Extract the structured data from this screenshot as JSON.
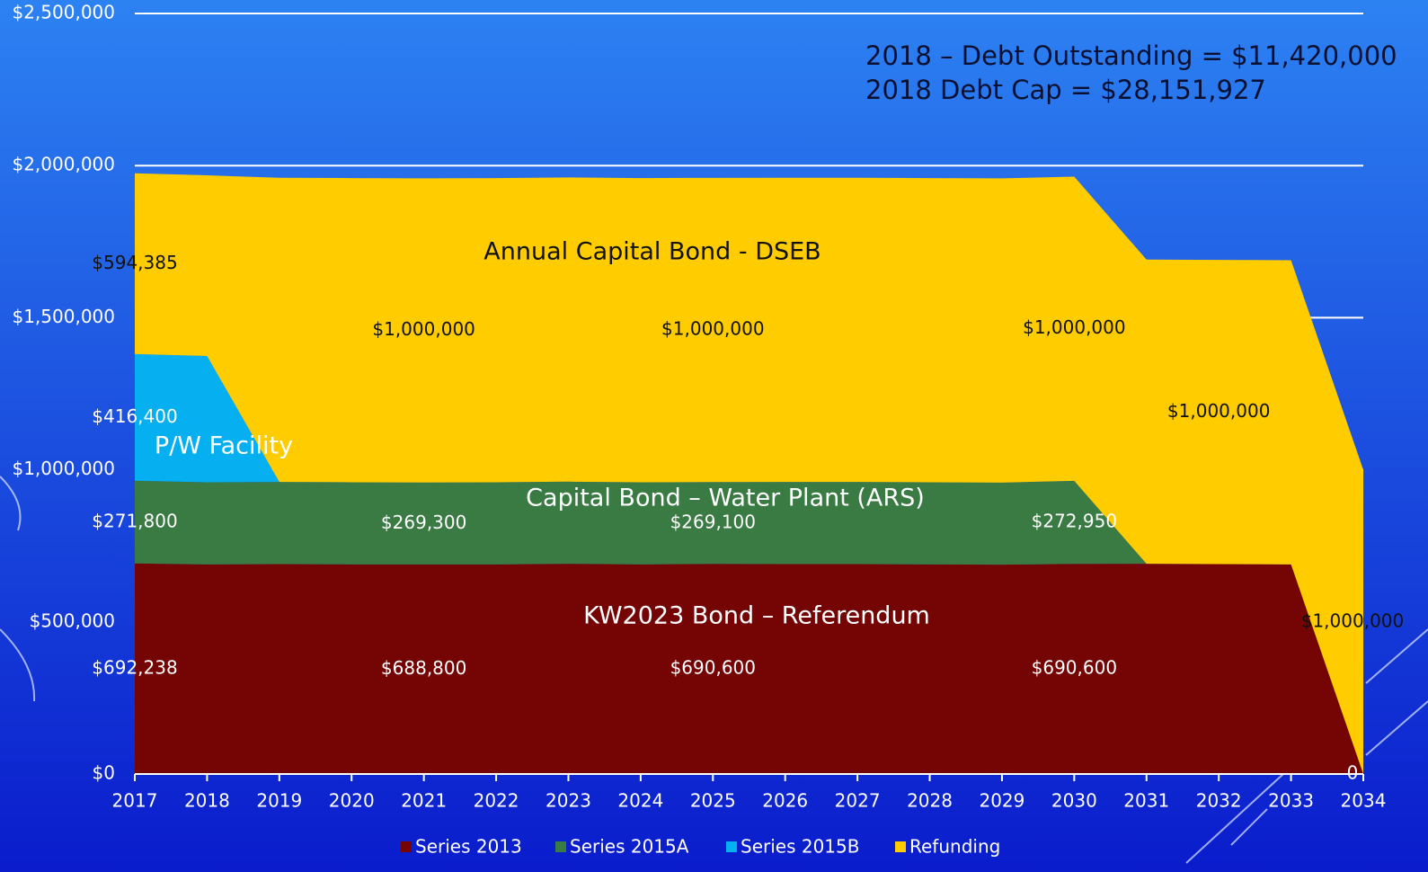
{
  "chart_data": {
    "type": "stacked_area",
    "annotations": [
      "2018 – Debt Outstanding = $11,420,000",
      "2018 Debt Cap = $28,151,927",
      "Annual Capital Bond - DSEB",
      "P/W Facility",
      "Capital Bond – Water Plant (ARS)",
      "KW2023 Bond – Referendum"
    ],
    "categories": [
      "2017",
      "2018",
      "2019",
      "2020",
      "2021",
      "2022",
      "2023",
      "2024",
      "2025",
      "2026",
      "2027",
      "2028",
      "2029",
      "2030",
      "2031",
      "2032",
      "2033",
      "2034"
    ],
    "series": [
      {
        "name": "Series 2013",
        "color": "#750505",
        "label_color": "#ffffff",
        "values": [
          692238,
          689000,
          690000,
          689000,
          688800,
          689000,
          691000,
          689000,
          690600,
          690000,
          690000,
          689000,
          688000,
          690600,
          691000,
          690000,
          689000,
          0
        ],
        "value_labels": [
          "$692,238",
          null,
          null,
          null,
          "$688,800",
          null,
          null,
          null,
          "$690,600",
          null,
          null,
          null,
          null,
          "$690,600",
          null,
          null,
          null,
          "0"
        ]
      },
      {
        "name": "Series 2015A",
        "color": "#3a7a43",
        "label_color": "#ffffff",
        "values": [
          271800,
          270000,
          270000,
          270000,
          269300,
          270000,
          270000,
          270000,
          269100,
          270000,
          270000,
          270000,
          270000,
          272950,
          0,
          0,
          0,
          0
        ],
        "value_labels": [
          "$271,800",
          null,
          null,
          null,
          "$269,300",
          null,
          null,
          null,
          "$269,100",
          null,
          null,
          null,
          null,
          "$272,950",
          null,
          null,
          null,
          null
        ]
      },
      {
        "name": "Series 2015B",
        "color": "#05aff0",
        "label_color": "#ffffff",
        "values": [
          416400,
          415000,
          0,
          0,
          0,
          0,
          0,
          0,
          0,
          0,
          0,
          0,
          0,
          0,
          0,
          0,
          0,
          0
        ],
        "value_labels": [
          "$416,400",
          null,
          null,
          null,
          null,
          null,
          null,
          null,
          null,
          null,
          null,
          null,
          null,
          null,
          null,
          null,
          null,
          null
        ]
      },
      {
        "name": "Refunding",
        "color": "#ffcc00",
        "label_color": "#111111",
        "values": [
          594385,
          594000,
          1000000,
          1000000,
          1000000,
          1000000,
          1000000,
          1000000,
          1000000,
          1000000,
          1000000,
          1000000,
          1000000,
          1000000,
          1000000,
          1000000,
          1000000,
          1000000
        ],
        "value_labels": [
          "$594,385",
          null,
          null,
          null,
          "$1,000,000",
          null,
          null,
          null,
          "$1,000,000",
          null,
          null,
          null,
          null,
          "$1,000,000",
          null,
          "$1,000,000",
          null,
          "$1,000,000"
        ]
      }
    ],
    "ylim": [
      0,
      2500000
    ],
    "yticks": [
      {
        "value": 0,
        "label": "$0"
      },
      {
        "value": 500000,
        "label": "$500,000"
      },
      {
        "value": 1000000,
        "label": "$1,000,000"
      },
      {
        "value": 1500000,
        "label": "$1,500,000"
      },
      {
        "value": 2000000,
        "label": "$2,000,000"
      },
      {
        "value": 2500000,
        "label": "$2,500,000"
      }
    ],
    "grid": true,
    "legend": "bottom"
  }
}
